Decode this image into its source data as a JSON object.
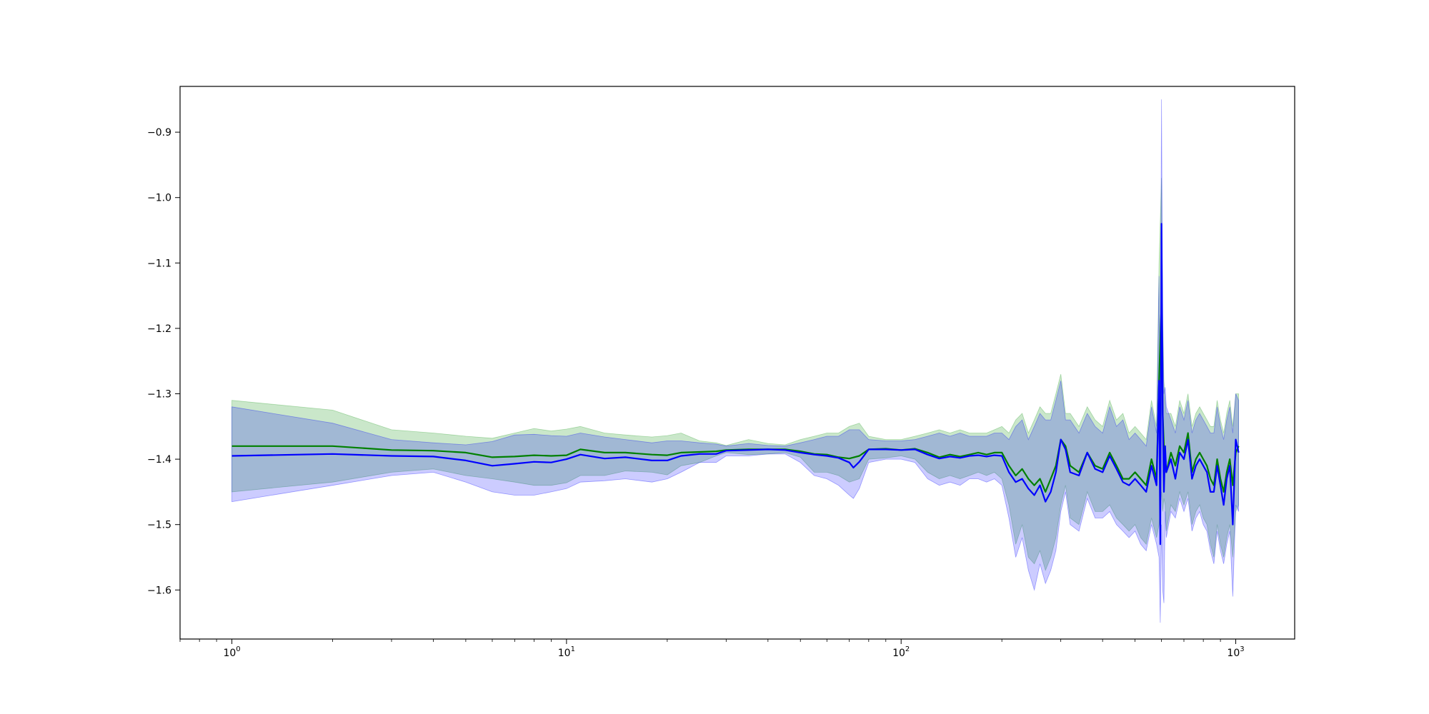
{
  "chart_data": {
    "type": "line",
    "title": "",
    "xlabel": "",
    "ylabel": "",
    "xscale": "log",
    "xlim": [
      0.7,
      1500
    ],
    "ylim": [
      -1.675,
      -0.83
    ],
    "grid": false,
    "xticks": [
      {
        "value": 1,
        "base": "10",
        "exp": "0"
      },
      {
        "value": 10,
        "base": "10",
        "exp": "1"
      },
      {
        "value": 100,
        "base": "10",
        "exp": "2"
      },
      {
        "value": 1000,
        "base": "10",
        "exp": "3"
      }
    ],
    "yticks": [
      {
        "value": -0.9,
        "label": "−0.9"
      },
      {
        "value": -1.0,
        "label": "−1.0"
      },
      {
        "value": -1.1,
        "label": "−1.1"
      },
      {
        "value": -1.2,
        "label": "−1.2"
      },
      {
        "value": -1.3,
        "label": "−1.3"
      },
      {
        "value": -1.4,
        "label": "−1.4"
      },
      {
        "value": -1.5,
        "label": "−1.5"
      },
      {
        "value": -1.6,
        "label": "−1.6"
      }
    ],
    "series": [
      {
        "color": "#008000",
        "band_color": "#2ca02c",
        "band_opacity": 0.25,
        "x": [
          1,
          2,
          3,
          4,
          5,
          6,
          7,
          8,
          9,
          10,
          11,
          13,
          15,
          18,
          20,
          22,
          25,
          28,
          30,
          35,
          40,
          45,
          50,
          55,
          60,
          65,
          70,
          75,
          80,
          90,
          100,
          110,
          120,
          130,
          140,
          150,
          160,
          170,
          180,
          190,
          200,
          210,
          220,
          230,
          240,
          250,
          260,
          270,
          280,
          290,
          300,
          310,
          320,
          340,
          360,
          380,
          400,
          420,
          440,
          460,
          480,
          500,
          520,
          540,
          560,
          580,
          590,
          600,
          605,
          610,
          615,
          620,
          640,
          660,
          680,
          700,
          720,
          740,
          760,
          780,
          800,
          820,
          840,
          860,
          880,
          900,
          920,
          940,
          960,
          980,
          1000,
          1020
        ],
        "mean": [
          -1.38,
          -1.38,
          -1.386,
          -1.387,
          -1.39,
          -1.397,
          -1.396,
          -1.394,
          -1.395,
          -1.394,
          -1.385,
          -1.39,
          -1.39,
          -1.393,
          -1.394,
          -1.39,
          -1.389,
          -1.388,
          -1.386,
          -1.385,
          -1.385,
          -1.385,
          -1.388,
          -1.392,
          -1.393,
          -1.397,
          -1.399,
          -1.395,
          -1.385,
          -1.384,
          -1.386,
          -1.384,
          -1.39,
          -1.397,
          -1.393,
          -1.396,
          -1.393,
          -1.39,
          -1.393,
          -1.39,
          -1.39,
          -1.41,
          -1.425,
          -1.415,
          -1.43,
          -1.44,
          -1.43,
          -1.45,
          -1.43,
          -1.41,
          -1.37,
          -1.38,
          -1.41,
          -1.42,
          -1.39,
          -1.41,
          -1.415,
          -1.39,
          -1.41,
          -1.43,
          -1.43,
          -1.42,
          -1.43,
          -1.44,
          -1.4,
          -1.43,
          -1.28,
          -1.16,
          -1.33,
          -1.38,
          -1.4,
          -1.42,
          -1.39,
          -1.41,
          -1.38,
          -1.39,
          -1.36,
          -1.42,
          -1.4,
          -1.39,
          -1.4,
          -1.41,
          -1.43,
          -1.44,
          -1.4,
          -1.43,
          -1.45,
          -1.42,
          -1.4,
          -1.44,
          -1.39,
          -1.38
        ],
        "upper": [
          -1.31,
          -1.325,
          -1.355,
          -1.36,
          -1.365,
          -1.368,
          -1.36,
          -1.353,
          -1.357,
          -1.354,
          -1.35,
          -1.36,
          -1.363,
          -1.366,
          -1.364,
          -1.36,
          -1.372,
          -1.375,
          -1.379,
          -1.37,
          -1.376,
          -1.378,
          -1.37,
          -1.365,
          -1.36,
          -1.36,
          -1.35,
          -1.345,
          -1.365,
          -1.37,
          -1.37,
          -1.365,
          -1.36,
          -1.355,
          -1.36,
          -1.355,
          -1.36,
          -1.36,
          -1.36,
          -1.355,
          -1.35,
          -1.36,
          -1.34,
          -1.33,
          -1.36,
          -1.34,
          -1.32,
          -1.33,
          -1.33,
          -1.3,
          -1.27,
          -1.33,
          -1.33,
          -1.35,
          -1.32,
          -1.34,
          -1.35,
          -1.31,
          -1.34,
          -1.33,
          -1.36,
          -1.35,
          -1.36,
          -1.37,
          -1.31,
          -1.35,
          -1.1,
          -0.97,
          -1.18,
          -1.28,
          -1.31,
          -1.33,
          -1.33,
          -1.35,
          -1.31,
          -1.33,
          -1.3,
          -1.35,
          -1.33,
          -1.32,
          -1.33,
          -1.34,
          -1.35,
          -1.35,
          -1.31,
          -1.34,
          -1.36,
          -1.33,
          -1.31,
          -1.35,
          -1.3,
          -1.3
        ],
        "lower": [
          -1.45,
          -1.435,
          -1.42,
          -1.415,
          -1.425,
          -1.43,
          -1.435,
          -1.44,
          -1.44,
          -1.436,
          -1.425,
          -1.425,
          -1.418,
          -1.42,
          -1.424,
          -1.41,
          -1.405,
          -1.395,
          -1.39,
          -1.393,
          -1.392,
          -1.39,
          -1.397,
          -1.42,
          -1.42,
          -1.425,
          -1.435,
          -1.43,
          -1.4,
          -1.398,
          -1.395,
          -1.4,
          -1.42,
          -1.43,
          -1.425,
          -1.43,
          -1.425,
          -1.42,
          -1.425,
          -1.42,
          -1.43,
          -1.47,
          -1.53,
          -1.5,
          -1.55,
          -1.56,
          -1.54,
          -1.57,
          -1.55,
          -1.52,
          -1.47,
          -1.44,
          -1.49,
          -1.5,
          -1.45,
          -1.48,
          -1.48,
          -1.47,
          -1.49,
          -1.5,
          -1.51,
          -1.5,
          -1.52,
          -1.53,
          -1.49,
          -1.52,
          -1.5,
          -1.45,
          -1.48,
          -1.46,
          -1.47,
          -1.51,
          -1.47,
          -1.48,
          -1.45,
          -1.47,
          -1.45,
          -1.5,
          -1.48,
          -1.47,
          -1.49,
          -1.5,
          -1.53,
          -1.55,
          -1.5,
          -1.53,
          -1.55,
          -1.52,
          -1.5,
          -1.55,
          -1.48,
          -1.47
        ]
      },
      {
        "color": "#0000ff",
        "band_color": "#0000ff",
        "band_opacity": 0.2,
        "x": [
          1,
          2,
          3,
          4,
          5,
          6,
          7,
          8,
          9,
          10,
          11,
          13,
          15,
          18,
          20,
          22,
          25,
          28,
          30,
          35,
          40,
          45,
          50,
          55,
          60,
          65,
          70,
          72,
          75,
          80,
          90,
          100,
          110,
          120,
          130,
          140,
          150,
          160,
          170,
          180,
          190,
          200,
          210,
          220,
          230,
          240,
          250,
          260,
          270,
          280,
          290,
          300,
          310,
          320,
          340,
          360,
          380,
          400,
          420,
          440,
          460,
          480,
          500,
          520,
          540,
          560,
          580,
          590,
          595,
          600,
          605,
          610,
          615,
          620,
          640,
          660,
          680,
          700,
          720,
          740,
          760,
          780,
          800,
          820,
          840,
          860,
          880,
          900,
          920,
          940,
          960,
          980,
          1000,
          1020
        ],
        "mean": [
          -1.395,
          -1.392,
          -1.395,
          -1.396,
          -1.402,
          -1.41,
          -1.407,
          -1.404,
          -1.405,
          -1.4,
          -1.393,
          -1.399,
          -1.397,
          -1.402,
          -1.402,
          -1.395,
          -1.392,
          -1.392,
          -1.387,
          -1.386,
          -1.385,
          -1.386,
          -1.39,
          -1.393,
          -1.395,
          -1.398,
          -1.405,
          -1.413,
          -1.404,
          -1.385,
          -1.385,
          -1.386,
          -1.385,
          -1.393,
          -1.399,
          -1.396,
          -1.398,
          -1.395,
          -1.394,
          -1.396,
          -1.394,
          -1.395,
          -1.42,
          -1.435,
          -1.43,
          -1.445,
          -1.455,
          -1.44,
          -1.465,
          -1.45,
          -1.42,
          -1.37,
          -1.385,
          -1.42,
          -1.425,
          -1.39,
          -1.415,
          -1.42,
          -1.395,
          -1.415,
          -1.435,
          -1.44,
          -1.43,
          -1.44,
          -1.45,
          -1.41,
          -1.44,
          -1.28,
          -1.53,
          -1.04,
          -1.33,
          -1.45,
          -1.38,
          -1.42,
          -1.4,
          -1.43,
          -1.39,
          -1.4,
          -1.37,
          -1.43,
          -1.41,
          -1.4,
          -1.41,
          -1.42,
          -1.45,
          -1.45,
          -1.41,
          -1.44,
          -1.47,
          -1.43,
          -1.41,
          -1.5,
          -1.37,
          -1.39
        ],
        "upper": [
          -1.32,
          -1.345,
          -1.37,
          -1.375,
          -1.378,
          -1.373,
          -1.363,
          -1.362,
          -1.364,
          -1.365,
          -1.36,
          -1.366,
          -1.37,
          -1.375,
          -1.372,
          -1.372,
          -1.375,
          -1.377,
          -1.38,
          -1.376,
          -1.379,
          -1.38,
          -1.375,
          -1.37,
          -1.365,
          -1.365,
          -1.355,
          -1.355,
          -1.355,
          -1.37,
          -1.372,
          -1.372,
          -1.37,
          -1.365,
          -1.36,
          -1.365,
          -1.36,
          -1.365,
          -1.365,
          -1.365,
          -1.36,
          -1.36,
          -1.37,
          -1.35,
          -1.34,
          -1.37,
          -1.35,
          -1.33,
          -1.34,
          -1.34,
          -1.31,
          -1.28,
          -1.34,
          -1.34,
          -1.36,
          -1.33,
          -1.35,
          -1.36,
          -1.32,
          -1.35,
          -1.34,
          -1.37,
          -1.36,
          -1.37,
          -1.38,
          -1.32,
          -1.36,
          -1.12,
          -1.3,
          -0.85,
          -1.2,
          -1.3,
          -1.29,
          -1.32,
          -1.34,
          -1.36,
          -1.32,
          -1.34,
          -1.31,
          -1.36,
          -1.34,
          -1.33,
          -1.34,
          -1.35,
          -1.36,
          -1.36,
          -1.32,
          -1.35,
          -1.37,
          -1.34,
          -1.32,
          -1.36,
          -1.3,
          -1.31
        ],
        "lower": [
          -1.465,
          -1.44,
          -1.425,
          -1.42,
          -1.435,
          -1.45,
          -1.455,
          -1.455,
          -1.45,
          -1.445,
          -1.435,
          -1.433,
          -1.43,
          -1.435,
          -1.43,
          -1.42,
          -1.405,
          -1.405,
          -1.395,
          -1.395,
          -1.392,
          -1.392,
          -1.405,
          -1.425,
          -1.43,
          -1.44,
          -1.455,
          -1.46,
          -1.445,
          -1.405,
          -1.4,
          -1.4,
          -1.405,
          -1.43,
          -1.44,
          -1.435,
          -1.44,
          -1.43,
          -1.43,
          -1.435,
          -1.43,
          -1.44,
          -1.49,
          -1.55,
          -1.52,
          -1.57,
          -1.6,
          -1.56,
          -1.59,
          -1.57,
          -1.54,
          -1.48,
          -1.45,
          -1.5,
          -1.51,
          -1.46,
          -1.49,
          -1.49,
          -1.48,
          -1.5,
          -1.51,
          -1.52,
          -1.51,
          -1.53,
          -1.54,
          -1.5,
          -1.53,
          -1.55,
          -1.65,
          -1.5,
          -1.6,
          -1.62,
          -1.48,
          -1.52,
          -1.48,
          -1.49,
          -1.46,
          -1.48,
          -1.46,
          -1.51,
          -1.49,
          -1.48,
          -1.5,
          -1.51,
          -1.54,
          -1.56,
          -1.51,
          -1.54,
          -1.56,
          -1.53,
          -1.51,
          -1.61,
          -1.47,
          -1.48
        ]
      }
    ]
  }
}
